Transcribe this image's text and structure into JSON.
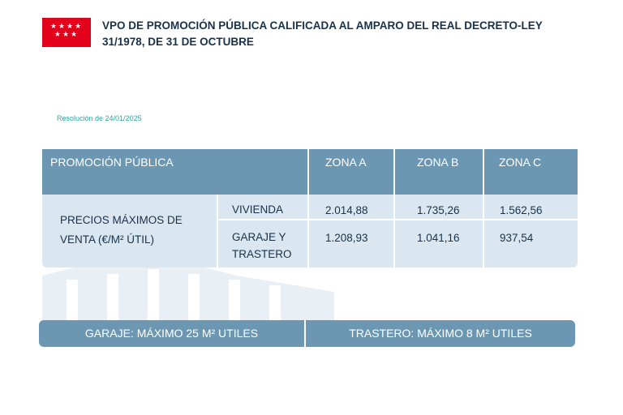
{
  "header": {
    "logo_stars": "★★★★\n★★★",
    "title": "VPO DE PROMOCIÓN PÚBLICA CALIFICADA AL AMPARO DEL REAL DECRETO-LEY 31/1978, DE 31 DE OCTUBRE"
  },
  "resolution": "Resolución de 24/01/2025",
  "table": {
    "headers": {
      "promocion": "PROMOCIÓN PÚBLICA",
      "zona_a": "ZONA A",
      "zona_b": "ZONA B",
      "zona_c": "ZONA C"
    },
    "row_group_label": "PRECIOS MÁXIMOS DE VENTA (€/M² ÚTIL)",
    "rows": [
      {
        "label": "VIVIENDA",
        "zona_a": "2.014,88",
        "zona_b": "1.735,26",
        "zona_c": "1.562,56"
      },
      {
        "label": "GARAJE Y TRASTERO",
        "zona_a": "1.208,93",
        "zona_b": "1.041,16",
        "zona_c": "937,54"
      }
    ]
  },
  "footer": {
    "garaje": "GARAJE: MÁXIMO 25 M² UTILES",
    "trastero": "TRASTERO: MÁXIMO 8 M² UTILES"
  },
  "colors": {
    "header_bg": "#6b97b3",
    "body_bg": "#dbe7f0",
    "logo_red": "#e3001b",
    "accent_teal": "#2ba99a"
  }
}
